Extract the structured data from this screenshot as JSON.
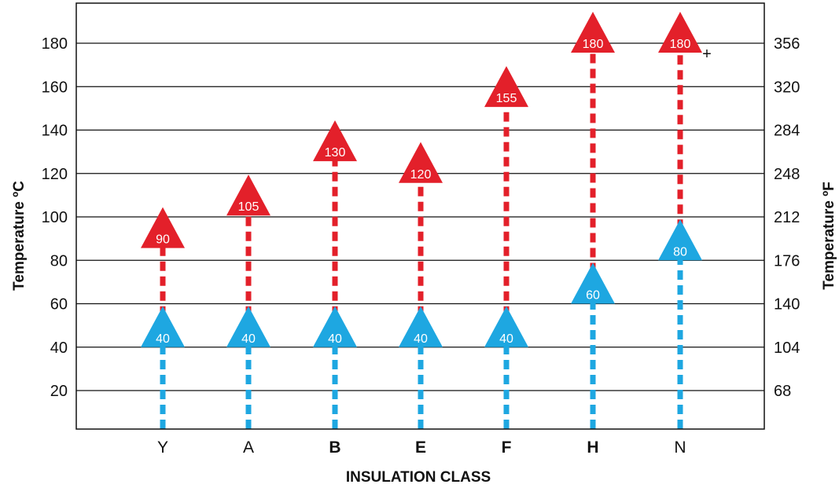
{
  "chart_data": {
    "type": "scatter",
    "title": "",
    "xlabel": "INSULATION CLASS",
    "ylabel": "Temperature ºC",
    "ylabel_right": "Temperature ºF",
    "ylim": [
      0,
      185
    ],
    "grid": true,
    "categories": [
      "Y",
      "A",
      "B",
      "E",
      "F",
      "H",
      "N"
    ],
    "bold_categories": [
      "B",
      "E",
      "F",
      "H"
    ],
    "yticks_left": [
      "20",
      "40",
      "60",
      "80",
      "100",
      "120",
      "140",
      "160",
      "180"
    ],
    "yticks_left_values": [
      20,
      40,
      60,
      80,
      100,
      120,
      140,
      160,
      180
    ],
    "highlighted_left_tick": "120",
    "yticks_right": [
      "68",
      "104",
      "140",
      "176",
      "212",
      "248",
      "284",
      "320",
      "356"
    ],
    "series": [
      {
        "values": [
          40,
          40,
          40,
          40,
          40,
          60,
          80
        ],
        "labels": [
          "40",
          "40",
          "40",
          "40",
          "40",
          "60",
          "80"
        ],
        "color": "#1ea7e1"
      },
      {
        "values": [
          90,
          105,
          130,
          120,
          155,
          180,
          180
        ],
        "labels": [
          "90",
          "105",
          "130",
          "120",
          "155",
          "180",
          "180"
        ],
        "color": "#e3202a"
      }
    ],
    "annotations": [
      "+"
    ],
    "colors": {
      "red": "#e3202a",
      "blue": "#1ea7e1",
      "grid": "#111111"
    }
  }
}
